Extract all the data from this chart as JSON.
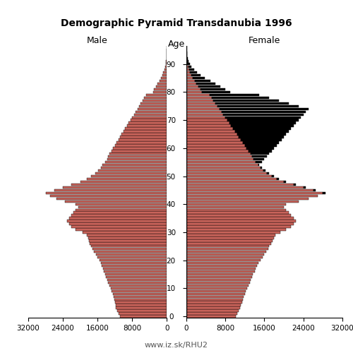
{
  "title": "Demographic Pyramid Transdanubia 1996",
  "xlabel_left": "Male",
  "xlabel_right": "Female",
  "age_label": "Age",
  "footer": "www.iz.sk/RHU2",
  "xlim": 32000,
  "bar_color": "#c8635a",
  "bar_color_excess": "#000000",
  "bar_edgecolor": "#000000",
  "ages": [
    0,
    1,
    2,
    3,
    4,
    5,
    6,
    7,
    8,
    9,
    10,
    11,
    12,
    13,
    14,
    15,
    16,
    17,
    18,
    19,
    20,
    21,
    22,
    23,
    24,
    25,
    26,
    27,
    28,
    29,
    30,
    31,
    32,
    33,
    34,
    35,
    36,
    37,
    38,
    39,
    40,
    41,
    42,
    43,
    44,
    45,
    46,
    47,
    48,
    49,
    50,
    51,
    52,
    53,
    54,
    55,
    56,
    57,
    58,
    59,
    60,
    61,
    62,
    63,
    64,
    65,
    66,
    67,
    68,
    69,
    70,
    71,
    72,
    73,
    74,
    75,
    76,
    77,
    78,
    79,
    80,
    81,
    82,
    83,
    84,
    85,
    86,
    87,
    88,
    89,
    90,
    91,
    92,
    93,
    94,
    95
  ],
  "male": [
    10800,
    11200,
    11500,
    11700,
    11800,
    12000,
    12100,
    12200,
    12500,
    12700,
    13000,
    13200,
    13500,
    13700,
    14000,
    14200,
    14500,
    14700,
    15000,
    15200,
    15600,
    16000,
    16400,
    16800,
    17200,
    17500,
    17800,
    18000,
    18200,
    18500,
    19500,
    21000,
    22000,
    22500,
    23000,
    22500,
    22000,
    21500,
    21000,
    20500,
    21000,
    23500,
    25500,
    27000,
    28000,
    26000,
    24000,
    22000,
    20000,
    18500,
    17500,
    16500,
    15800,
    15200,
    14800,
    14200,
    13800,
    13500,
    13200,
    12800,
    12400,
    12000,
    11600,
    11200,
    10800,
    10400,
    10000,
    9600,
    9200,
    8800,
    8400,
    8000,
    7600,
    7200,
    6800,
    6400,
    6000,
    5600,
    5200,
    4800,
    3200,
    2900,
    2500,
    2100,
    1700,
    1400,
    1100,
    800,
    600,
    400,
    250,
    180,
    120,
    80,
    50,
    30
  ],
  "female": [
    10200,
    10500,
    10800,
    11000,
    11200,
    11400,
    11600,
    11800,
    12000,
    12200,
    12500,
    12700,
    13000,
    13200,
    13500,
    13700,
    14000,
    14200,
    14500,
    14800,
    15200,
    15600,
    16000,
    16400,
    16800,
    17000,
    17400,
    17700,
    18000,
    18300,
    19200,
    20500,
    21500,
    22000,
    22500,
    22000,
    21500,
    21000,
    20500,
    20000,
    20500,
    23000,
    25000,
    27000,
    28500,
    26500,
    24500,
    22500,
    20500,
    19000,
    18000,
    17000,
    16200,
    15500,
    15000,
    15500,
    16000,
    16500,
    17000,
    17500,
    18000,
    18500,
    19000,
    19500,
    20000,
    20500,
    21000,
    21500,
    22000,
    22500,
    23000,
    23500,
    24000,
    24500,
    25000,
    23000,
    21000,
    19000,
    17000,
    15000,
    9000,
    8000,
    7000,
    6000,
    5000,
    3800,
    3000,
    2200,
    1600,
    1100,
    700,
    500,
    350,
    220,
    130,
    70
  ],
  "age_ticks": [
    0,
    10,
    20,
    30,
    40,
    50,
    60,
    70,
    80,
    90
  ],
  "bar_height": 0.85
}
